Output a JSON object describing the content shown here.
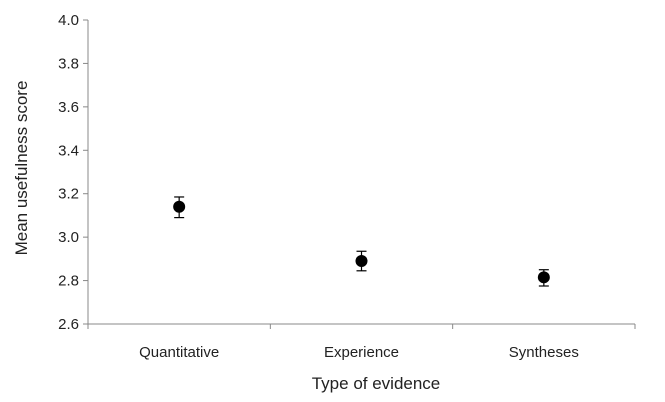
{
  "chart_data": {
    "type": "scatter",
    "title": "",
    "xlabel": "Type of evidence",
    "ylabel": "Mean usefulness score",
    "categories": [
      "Quantitative",
      "Experience",
      "Syntheses"
    ],
    "series": [
      {
        "values": [
          3.14,
          2.89,
          2.815
        ],
        "error_low": [
          3.09,
          2.845,
          2.775
        ],
        "error_high": [
          3.185,
          2.935,
          2.85
        ],
        "color": "#000000"
      }
    ],
    "ylim": [
      2.6,
      4.0
    ],
    "yticks": [
      "2.6",
      "2.8",
      "3.0",
      "3.2",
      "3.4",
      "3.6",
      "3.8",
      "4.0"
    ],
    "grid": false,
    "error_bars": true,
    "axis_color": "#888888"
  }
}
